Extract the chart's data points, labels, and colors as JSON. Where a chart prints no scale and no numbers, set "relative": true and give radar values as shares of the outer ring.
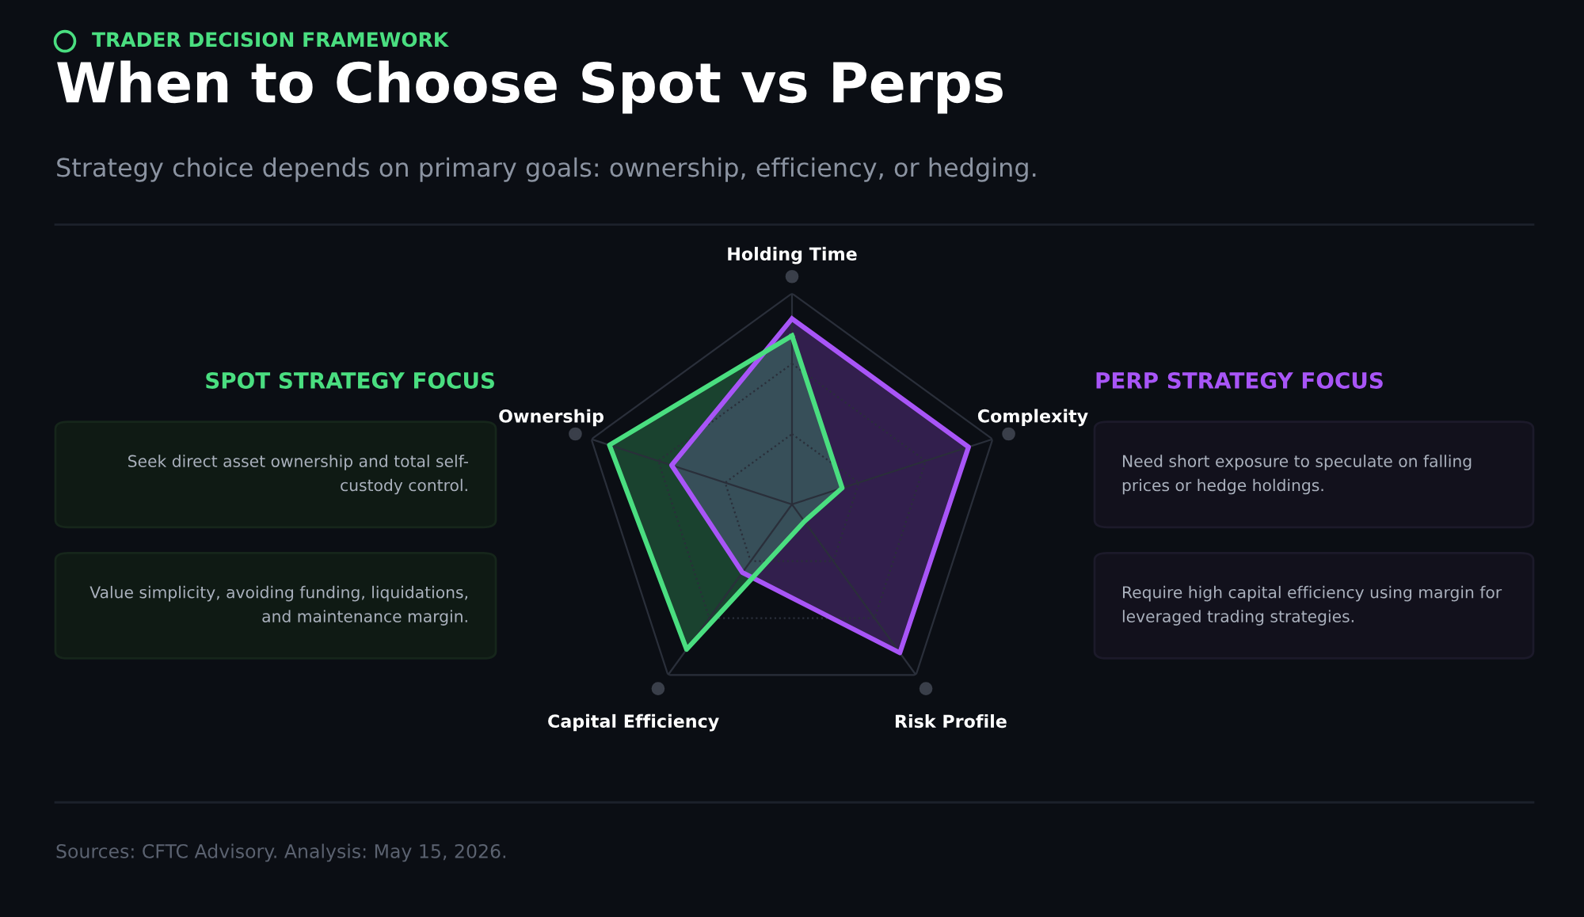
{
  "chart_data": [
    {
      "type": "radar",
      "title": "When to Choose Spot vs Perps",
      "subtitle": "Strategy choice depends on primary goals: ownership, efficiency, or hedging.",
      "annotations": [
        "TRADER DECISION FRAMEWORK",
        "Sources: CFTC Advisory. Analysis: May 15, 2026."
      ],
      "categories": [
        "Holding Time",
        "Complexity",
        "Risk Profile",
        "Capital Efficiency",
        "Ownership"
      ],
      "relative": true,
      "grid": true,
      "legend": false,
      "series": [
        {
          "color": "#a855f7",
          "values": [
            0.88,
            0.88,
            0.87,
            0.4,
            0.6
          ]
        },
        {
          "color": "#4ade80",
          "values": [
            0.8,
            0.25,
            0.1,
            0.85,
            0.91
          ]
        }
      ]
    },
    {
      "type": "other",
      "title": "SPOT STRATEGY FOCUS",
      "annotations": [
        "Seek direct asset ownership and total self-\ncustody control.",
        "Value simplicity, avoiding funding, liquidations,\nand maintenance margin."
      ]
    },
    {
      "type": "other",
      "title": "PERP STRATEGY FOCUS",
      "annotations": [
        "Need short exposure to speculate on falling\nprices or hedge holdings.",
        "Require high capital efficiency using margin for\nleveraged trading strategies."
      ]
    }
  ]
}
